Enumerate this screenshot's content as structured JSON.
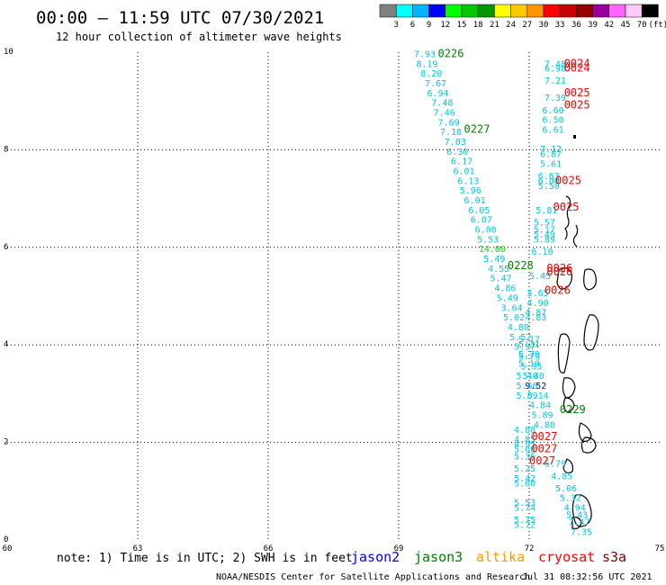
{
  "header": {
    "title": "00:00 – 11:59 UTC 07/30/2021",
    "subtitle": "12 hour collection of altimeter wave heights"
  },
  "footer": {
    "note": "note: 1) Time is in UTC; 2) SWH is in feet",
    "credit": "NOAA/NESDIS Center for Satellite Applications and Research",
    "timestamp": "Jul 31 08:32:56 UTC 2021"
  },
  "colors": {
    "jason2": "#0000ff",
    "jason3": "#008000",
    "altika": "#ff9900",
    "cryosat": "#ff0000",
    "s3a": "#800000",
    "track": "#00c8e0",
    "land": "#000000"
  },
  "satellites": [
    {
      "id": "jason2",
      "label": "jason2",
      "color": "#0000ff"
    },
    {
      "id": "jason3",
      "label": "jason3",
      "color": "#008000"
    },
    {
      "id": "altika",
      "label": "altika",
      "color": "#ff9900"
    },
    {
      "id": "cryosat",
      "label": "cryosat",
      "color": "#ff0000"
    },
    {
      "id": "s3a",
      "label": "s3a",
      "color": "#800000"
    }
  ],
  "chart_data": {
    "type": "scatter",
    "xlim": [
      60,
      75
    ],
    "ylim": [
      0,
      10
    ],
    "xticks": [
      "60",
      "63",
      "66",
      "69",
      "72",
      "75"
    ],
    "yticks": [
      "0",
      "2",
      "4",
      "6",
      "8",
      "10"
    ],
    "xtick_values": [
      60,
      63,
      66,
      69,
      72,
      75
    ],
    "ytick_values": [
      0,
      2,
      4,
      6,
      8,
      10
    ],
    "grid": true,
    "colorbar": {
      "colors": [
        "#808080",
        "#00ffff",
        "#00b4ff",
        "#0000ff",
        "#00ff00",
        "#00c800",
        "#009600",
        "#ffff00",
        "#ffc800",
        "#ff9600",
        "#ff0000",
        "#c80000",
        "#960000",
        "#9b009b",
        "#ff64ff",
        "#ffc8ff",
        "#000000"
      ],
      "labels": [
        "3",
        "6",
        "9",
        "12",
        "15",
        "18",
        "21",
        "24",
        "27",
        "30",
        "33",
        "36",
        "39",
        "42",
        "45",
        "70",
        "(ft)"
      ]
    },
    "time_labels": [
      {
        "text": "0226",
        "x": 70.2,
        "y": 9.9,
        "color": "#008000"
      },
      {
        "text": "0227",
        "x": 70.8,
        "y": 8.35,
        "color": "#008000"
      },
      {
        "text": "0228",
        "x": 71.8,
        "y": 5.55,
        "color": "#008000"
      },
      {
        "text": "0229",
        "x": 73.0,
        "y": 2.6,
        "color": "#008000"
      },
      {
        "text": "0024",
        "x": 73.1,
        "y": 9.7,
        "color": "#ff0000"
      },
      {
        "text": "0024",
        "x": 73.1,
        "y": 9.6,
        "color": "#ff0000"
      },
      {
        "text": "0025",
        "x": 73.1,
        "y": 9.1,
        "color": "#ff0000"
      },
      {
        "text": "0025",
        "x": 73.1,
        "y": 8.85,
        "color": "#ff0000"
      },
      {
        "text": "0025",
        "x": 72.9,
        "y": 7.3,
        "color": "#ff0000"
      },
      {
        "text": "0025",
        "x": 72.85,
        "y": 6.75,
        "color": "#ff0000"
      },
      {
        "text": "0026",
        "x": 72.7,
        "y": 5.5,
        "color": "#ff0000"
      },
      {
        "text": "0026",
        "x": 72.7,
        "y": 5.42,
        "color": "#ff0000"
      },
      {
        "text": "0026",
        "x": 72.65,
        "y": 5.05,
        "color": "#ff0000"
      },
      {
        "text": "0027",
        "x": 72.35,
        "y": 2.05,
        "color": "#ff0000"
      },
      {
        "text": "0027",
        "x": 72.35,
        "y": 1.8,
        "color": "#ff0000"
      },
      {
        "text": "0027",
        "x": 72.3,
        "y": 1.55,
        "color": "#ff0000"
      }
    ],
    "series": [
      {
        "name": "jason3",
        "color": "#00c8e0",
        "points": [
          {
            "x": 69.6,
            "y": 9.9,
            "label": "7.93"
          },
          {
            "x": 69.65,
            "y": 9.7,
            "label": "8.19"
          },
          {
            "x": 69.75,
            "y": 9.5,
            "label": "8.20"
          },
          {
            "x": 69.85,
            "y": 9.3,
            "label": "7.67"
          },
          {
            "x": 69.9,
            "y": 9.1,
            "label": "6.94"
          },
          {
            "x": 70.0,
            "y": 8.9,
            "label": "7.48"
          },
          {
            "x": 70.05,
            "y": 8.7,
            "label": "7.46"
          },
          {
            "x": 70.15,
            "y": 8.5,
            "label": "7.69"
          },
          {
            "x": 70.2,
            "y": 8.3,
            "label": "7.18"
          },
          {
            "x": 70.3,
            "y": 8.1,
            "label": "7.03"
          },
          {
            "x": 70.35,
            "y": 7.9,
            "label": "6.30"
          },
          {
            "x": 70.45,
            "y": 7.7,
            "label": "6.17"
          },
          {
            "x": 70.5,
            "y": 7.5,
            "label": "6.01"
          },
          {
            "x": 70.6,
            "y": 7.3,
            "label": "6.13"
          },
          {
            "x": 70.65,
            "y": 7.1,
            "label": "5.96"
          },
          {
            "x": 70.75,
            "y": 6.9,
            "label": "6.01"
          },
          {
            "x": 70.85,
            "y": 6.7,
            "label": "6.05"
          },
          {
            "x": 70.9,
            "y": 6.5,
            "label": "6.07"
          },
          {
            "x": 71.0,
            "y": 6.3,
            "label": "6.08"
          },
          {
            "x": 71.05,
            "y": 6.1,
            "label": "5.53"
          },
          {
            "x": 71.15,
            "y": 5.9,
            "label": "14.00",
            "color": "#00e000"
          },
          {
            "x": 71.2,
            "y": 5.7,
            "label": "5.49"
          },
          {
            "x": 71.3,
            "y": 5.5,
            "label": "4.55"
          },
          {
            "x": 71.35,
            "y": 5.3,
            "label": "5.47"
          },
          {
            "x": 71.45,
            "y": 5.1,
            "label": "4.86"
          },
          {
            "x": 71.5,
            "y": 4.9,
            "label": "5.49"
          },
          {
            "x": 71.6,
            "y": 4.7,
            "label": "3.64"
          },
          {
            "x": 71.65,
            "y": 4.5,
            "label": "5.02"
          },
          {
            "x": 71.75,
            "y": 4.3,
            "label": "4.80"
          },
          {
            "x": 71.8,
            "y": 4.1,
            "label": "5.52"
          },
          {
            "x": 71.9,
            "y": 3.9,
            "label": "5.37"
          },
          {
            "x": 72.0,
            "y": 3.7,
            "label": "5.79"
          },
          {
            "x": 72.05,
            "y": 3.5,
            "label": "5.35"
          },
          {
            "x": 72.1,
            "y": 3.3,
            "label": "5.40"
          },
          {
            "x": 72.15,
            "y": 3.1,
            "label": "9.52",
            "color": "#0000ff"
          },
          {
            "x": 72.2,
            "y": 2.9,
            "label": "5.14"
          },
          {
            "x": 72.25,
            "y": 2.7,
            "label": "4.84"
          },
          {
            "x": 72.3,
            "y": 2.5,
            "label": "5.89"
          },
          {
            "x": 72.35,
            "y": 2.3,
            "label": "4.80"
          }
        ]
      },
      {
        "name": "cryosat",
        "color": "#00c8e0",
        "points": [
          {
            "x": 72.6,
            "y": 9.7,
            "label": "7.48"
          },
          {
            "x": 72.6,
            "y": 9.6,
            "label": "6.98"
          },
          {
            "x": 72.6,
            "y": 9.35,
            "label": "7.21"
          },
          {
            "x": 72.6,
            "y": 9.0,
            "label": "7.39"
          },
          {
            "x": 72.55,
            "y": 8.75,
            "label": "6.60"
          },
          {
            "x": 72.55,
            "y": 8.55,
            "label": "6.50"
          },
          {
            "x": 72.55,
            "y": 8.35,
            "label": "6.61"
          },
          {
            "x": 72.5,
            "y": 7.95,
            "label": "7.12"
          },
          {
            "x": 72.5,
            "y": 7.85,
            "label": "6.87"
          },
          {
            "x": 72.5,
            "y": 7.65,
            "label": "5.61"
          },
          {
            "x": 72.45,
            "y": 7.4,
            "label": "6.63"
          },
          {
            "x": 72.45,
            "y": 7.3,
            "label": "6.06"
          },
          {
            "x": 72.45,
            "y": 7.2,
            "label": "5.50"
          },
          {
            "x": 72.4,
            "y": 6.7,
            "label": "5.81"
          },
          {
            "x": 72.35,
            "y": 6.45,
            "label": "5.57"
          },
          {
            "x": 72.35,
            "y": 6.3,
            "label": "5.17"
          },
          {
            "x": 72.35,
            "y": 6.2,
            "label": "5.49"
          },
          {
            "x": 72.35,
            "y": 6.1,
            "label": "5.89"
          },
          {
            "x": 72.3,
            "y": 5.85,
            "label": "6.10"
          },
          {
            "x": 72.25,
            "y": 5.35,
            "label": "5.45"
          },
          {
            "x": 72.2,
            "y": 5.0,
            "label": "5.65"
          },
          {
            "x": 72.2,
            "y": 4.8,
            "label": "4.90"
          },
          {
            "x": 72.15,
            "y": 4.6,
            "label": "4.87"
          },
          {
            "x": 72.15,
            "y": 4.5,
            "label": "4.83"
          },
          {
            "x": 72.0,
            "y": 4.05,
            "label": "5.17"
          },
          {
            "x": 72.0,
            "y": 3.95,
            "label": "5.31"
          },
          {
            "x": 72.0,
            "y": 3.75,
            "label": "5.79"
          },
          {
            "x": 72.0,
            "y": 3.55,
            "label": "5.19"
          },
          {
            "x": 71.95,
            "y": 3.3,
            "label": "5.40"
          },
          {
            "x": 71.95,
            "y": 3.1,
            "label": "5.66"
          },
          {
            "x": 71.95,
            "y": 2.9,
            "label": "5.89"
          },
          {
            "x": 71.9,
            "y": 2.2,
            "label": "4.88"
          },
          {
            "x": 71.9,
            "y": 2.0,
            "label": "4.85"
          },
          {
            "x": 71.9,
            "y": 1.9,
            "label": "4.95"
          },
          {
            "x": 71.9,
            "y": 1.8,
            "label": "5.06"
          },
          {
            "x": 71.9,
            "y": 1.65,
            "label": "5.35"
          },
          {
            "x": 71.9,
            "y": 1.4,
            "label": "5.25"
          },
          {
            "x": 71.9,
            "y": 1.2,
            "label": "5.42"
          },
          {
            "x": 71.9,
            "y": 1.1,
            "label": "5.60"
          },
          {
            "x": 71.9,
            "y": 0.7,
            "label": "5.53"
          },
          {
            "x": 71.9,
            "y": 0.6,
            "label": "5.74"
          },
          {
            "x": 71.9,
            "y": 0.35,
            "label": "5.75"
          },
          {
            "x": 71.9,
            "y": 0.25,
            "label": "5.72"
          }
        ]
      },
      {
        "name": "s3a",
        "color": "#00c8e0",
        "points": [
          {
            "x": 72.6,
            "y": 1.5,
            "label": "5.79"
          },
          {
            "x": 72.75,
            "y": 1.25,
            "label": "4.85"
          },
          {
            "x": 72.85,
            "y": 1.0,
            "label": "5.06"
          },
          {
            "x": 72.95,
            "y": 0.8,
            "label": "5.32"
          },
          {
            "x": 73.05,
            "y": 0.6,
            "label": "4.94"
          },
          {
            "x": 73.1,
            "y": 0.45,
            "label": "5.43"
          },
          {
            "x": 73.15,
            "y": 0.3,
            "label": "7.47"
          },
          {
            "x": 73.2,
            "y": 0.1,
            "label": "7.35"
          }
        ]
      }
    ]
  }
}
